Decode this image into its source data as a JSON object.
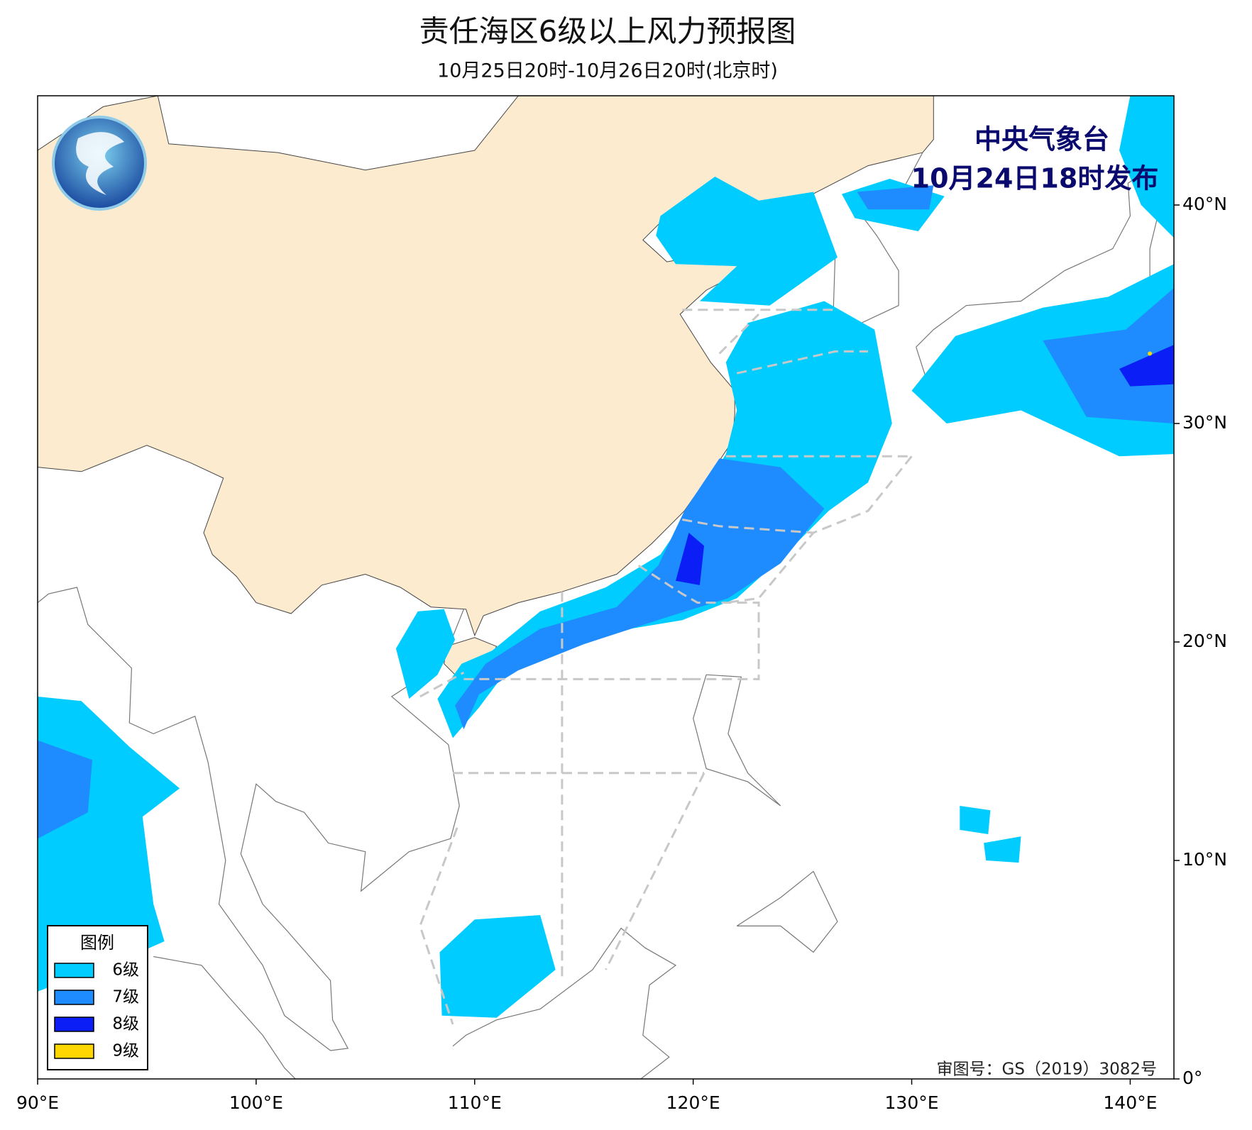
{
  "header": {
    "title": "责任海区6级以上风力预报图",
    "subtitle": "10月25日20时-10月26日20时(北京时)"
  },
  "issuer": {
    "name": "中央气象台",
    "time": "10月24日18时发布"
  },
  "legend": {
    "title": "图例",
    "items": [
      {
        "label": "6级",
        "color": "#00CCFF"
      },
      {
        "label": "7级",
        "color": "#1E8CFF"
      },
      {
        "label": "8级",
        "color": "#0A1EF5"
      },
      {
        "label": "9级",
        "color": "#FFD700"
      }
    ]
  },
  "map": {
    "xlim": [
      90,
      142
    ],
    "ylim": [
      0,
      45
    ],
    "xticks": [
      {
        "value": 90,
        "label": "90°E"
      },
      {
        "value": 100,
        "label": "100°E"
      },
      {
        "value": 110,
        "label": "110°E"
      },
      {
        "value": 120,
        "label": "120°E"
      },
      {
        "value": 130,
        "label": "130°E"
      },
      {
        "value": 140,
        "label": "140°E"
      }
    ],
    "yticks": [
      {
        "value": 0,
        "label": "0°"
      },
      {
        "value": 10,
        "label": "10°N"
      },
      {
        "value": 20,
        "label": "20°N"
      },
      {
        "value": 30,
        "label": "30°N"
      },
      {
        "value": 40,
        "label": "40°N"
      }
    ]
  },
  "credit": "审图号：GS（2019）3082号"
}
